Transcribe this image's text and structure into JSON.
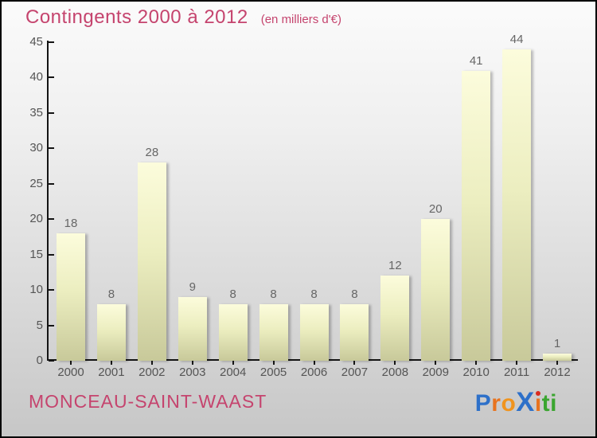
{
  "title": "Contingents 2000 à 2012",
  "subtitle": "(en milliers d'€)",
  "footer": {
    "location": "MONCEAU-SAINT-WAAST"
  },
  "logo": {
    "text": "Proxiti",
    "letters": [
      {
        "ch": "P",
        "color": "#2d70c9"
      },
      {
        "ch": "r",
        "color": "#e8731e"
      },
      {
        "ch": "o",
        "color": "#f0941e"
      },
      {
        "ch": "X",
        "color": "#2d70c9",
        "big": true
      },
      {
        "ch": "i",
        "color": "#e8731e",
        "dot": "#d92b1f"
      },
      {
        "ch": "t",
        "color": "#3aa52f"
      },
      {
        "ch": "i",
        "color": "#3aa52f"
      }
    ]
  },
  "colors": {
    "accent_pink": "#c5446e",
    "bar_top": "#fcfcdc",
    "bar_bottom": "#c8c99a",
    "axis": "#141414",
    "label_gray": "#555555"
  },
  "chart_data": {
    "type": "bar",
    "title": "Contingents 2000 à 2012",
    "subtitle": "(en milliers d'€)",
    "categories": [
      "2000",
      "2001",
      "2002",
      "2003",
      "2004",
      "2005",
      "2006",
      "2007",
      "2008",
      "2009",
      "2010",
      "2011",
      "2012"
    ],
    "values": [
      18,
      8,
      28,
      9,
      8,
      8,
      8,
      8,
      12,
      20,
      41,
      44,
      1
    ],
    "xlabel": "",
    "ylabel": "",
    "ylim": [
      0,
      45
    ],
    "ytick_step": 5,
    "grid": false,
    "legend": false,
    "bar_value_labels": true
  }
}
